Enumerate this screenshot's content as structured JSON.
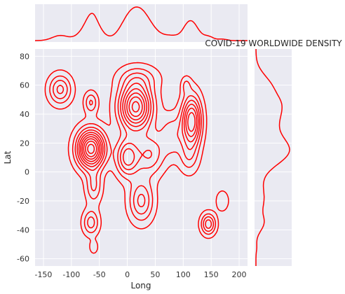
{
  "chart_data": {
    "type": "kde-joint",
    "title": "COVID-19 WORLDWIDE DENSITY",
    "xlabel": "Long",
    "ylabel": "Lat",
    "xlim": [
      -165,
      215
    ],
    "ylim": [
      -65,
      85
    ],
    "xticks": [
      "-150",
      "-100",
      "-50",
      "0",
      "50",
      "100",
      "150",
      "200"
    ],
    "yticks": [
      "-60",
      "-40",
      "-20",
      "0",
      "20",
      "40",
      "60",
      "80"
    ],
    "grid": true,
    "line_color": "#ff0000",
    "background": "#eaeaf2",
    "kde_components": [
      {
        "x": -65,
        "y": 16,
        "sx": 17,
        "sy": 9,
        "w": 1.3
      },
      {
        "x": 15,
        "y": 45,
        "sx": 20,
        "sy": 11,
        "w": 1.15
      },
      {
        "x": 115,
        "y": 35,
        "sx": 12,
        "sy": 12,
        "w": 0.95
      },
      {
        "x": 0,
        "y": 10,
        "sx": 14,
        "sy": 9,
        "w": 0.65
      },
      {
        "x": -120,
        "y": 57,
        "sx": 14,
        "sy": 7,
        "w": 0.5
      },
      {
        "x": -65,
        "y": 48,
        "sx": 8,
        "sy": 5,
        "w": 0.35
      },
      {
        "x": 40,
        "y": 12,
        "sx": 18,
        "sy": 10,
        "w": 0.45
      },
      {
        "x": 25,
        "y": -20,
        "sx": 15,
        "sy": 10,
        "w": 0.5
      },
      {
        "x": 145,
        "y": -36,
        "sx": 9,
        "sy": 5,
        "w": 0.55
      },
      {
        "x": -65,
        "y": -35,
        "sx": 10,
        "sy": 6,
        "w": 0.4
      },
      {
        "x": -60,
        "y": -10,
        "sx": 10,
        "sy": 8,
        "w": 0.35
      },
      {
        "x": 80,
        "y": 25,
        "sx": 15,
        "sy": 10,
        "w": 0.3
      },
      {
        "x": 105,
        "y": 60,
        "sx": 6,
        "sy": 4,
        "w": 0.2
      },
      {
        "x": -60,
        "y": -52,
        "sx": 5,
        "sy": 3,
        "w": 0.2
      },
      {
        "x": 170,
        "y": -20,
        "sx": 8,
        "sy": 5,
        "w": 0.2
      },
      {
        "x": 20,
        "y": 65,
        "sx": 25,
        "sy": 6,
        "w": 0.25
      },
      {
        "x": 110,
        "y": 10,
        "sx": 12,
        "sy": 8,
        "w": 0.25
      }
    ],
    "contour_levels": 10
  }
}
